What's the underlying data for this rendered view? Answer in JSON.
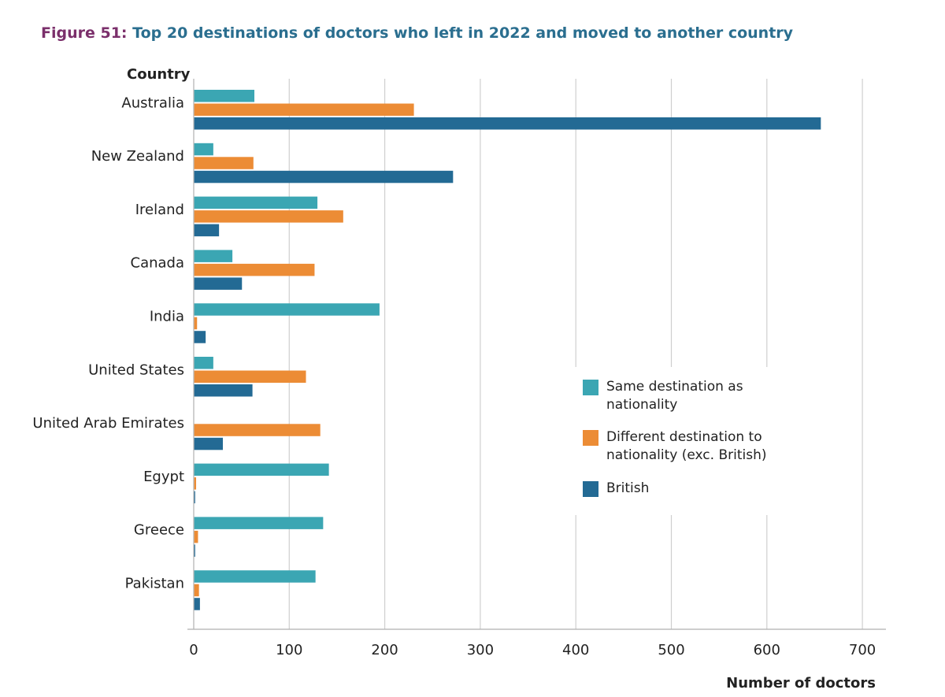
{
  "figure": {
    "label": "Figure 51:",
    "title": "Top 20 destinations of doctors who left in 2022 and moved to another country"
  },
  "colors": {
    "same": "#3ba6b3",
    "different": "#ec8c35",
    "british": "#236a94",
    "grid": "#cfcfcf",
    "axis": "#b0b0b0"
  },
  "chart_data": {
    "type": "bar",
    "orientation": "horizontal",
    "title": "Top 20 destinations of doctors who left in 2022 and moved to another country",
    "xlabel": "Number of doctors",
    "ylabel": "Country",
    "xlim": [
      0,
      730
    ],
    "xticks": [
      0,
      100,
      200,
      300,
      400,
      500,
      600,
      700
    ],
    "grid": "vertical",
    "legend_position": "right",
    "categories": [
      "Australia",
      "New Zealand",
      "Ireland",
      "Canada",
      "India",
      "United States",
      "United Arab Emirates",
      "Egypt",
      "Greece",
      "Pakistan"
    ],
    "series": [
      {
        "name": "Same destination as nationality",
        "color": "#3ba6b3",
        "values": [
          63,
          20,
          129,
          40,
          194,
          20,
          0,
          141,
          135,
          127
        ]
      },
      {
        "name": "Different destination to nationality (exc. British)",
        "color": "#ec8c35",
        "values": [
          230,
          62,
          156,
          126,
          3,
          117,
          132,
          2,
          4,
          5
        ]
      },
      {
        "name": "British",
        "color": "#236a94",
        "values": [
          656,
          271,
          26,
          50,
          12,
          61,
          30,
          1,
          1,
          6
        ]
      }
    ]
  }
}
